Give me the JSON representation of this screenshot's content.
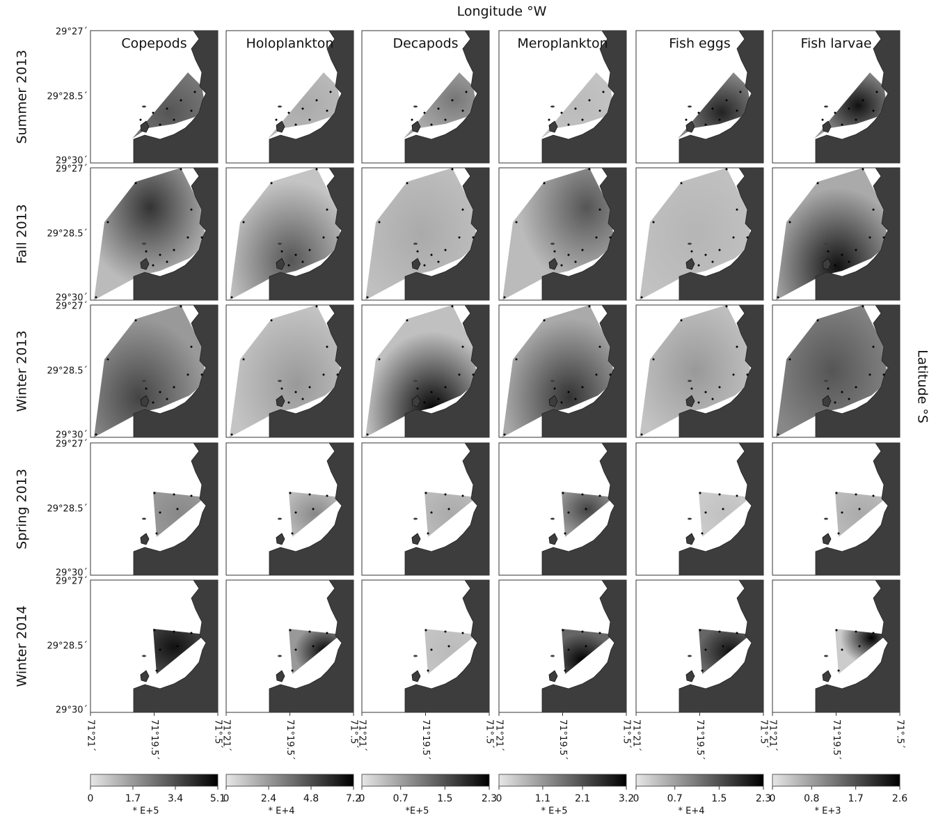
{
  "figure": {
    "x_axis_title": "Longitude °W",
    "y_axis_title": "Latitude °S",
    "columns": [
      {
        "name": "Copepods",
        "colorbar": {
          "ticks": [
            0,
            1.7,
            3.4,
            5.1
          ],
          "scale": "* E+5"
        }
      },
      {
        "name": "Holoplankton",
        "colorbar": {
          "ticks": [
            0,
            2.4,
            4.8,
            7.2
          ],
          "scale": "* E+4"
        }
      },
      {
        "name": "Decapods",
        "colorbar": {
          "ticks": [
            0,
            0.7,
            1.5,
            2.3
          ],
          "scale": "*E+5"
        }
      },
      {
        "name": "Meroplankton",
        "colorbar": {
          "ticks": [
            0,
            1.1,
            2.1,
            3.2
          ],
          "scale": "* E+5"
        }
      },
      {
        "name": "Fish eggs",
        "colorbar": {
          "ticks": [
            0,
            0.7,
            1.5,
            2.3
          ],
          "scale": "* E+4"
        }
      },
      {
        "name": "Fish larvae",
        "colorbar": {
          "ticks": [
            0,
            0.8,
            1.7,
            2.6
          ],
          "scale": "* E+3"
        }
      }
    ],
    "rows": [
      "Summer 2013",
      "Fall 2013",
      "Winter 2013",
      "Spring 2013",
      "Winter 2014"
    ],
    "lat_ticks": [
      "29°27´",
      "29°28.5´",
      "29°30´"
    ],
    "lon_ticks": [
      "71°21´",
      "71°19.5´",
      "71°.5´"
    ]
  }
}
